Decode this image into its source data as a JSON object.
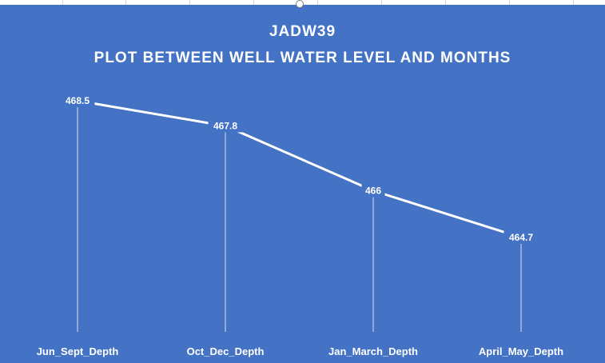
{
  "chart_data": {
    "type": "line",
    "title": "JADW39",
    "subtitle": "PLOT BETWEEN WELL WATER LEVEL AND MONTHS",
    "categories": [
      "Jun_Sept_Depth",
      "Oct_Dec_Depth",
      "Jan_March_Depth",
      "April_May_Depth"
    ],
    "series": [
      {
        "values": [
          468.5,
          467.8,
          466,
          464.7
        ]
      }
    ],
    "data_labels": [
      "468.5",
      "467.8",
      "466",
      "464.7"
    ],
    "drop_lines": true,
    "grid": false,
    "legend": "none",
    "colors": {
      "background": "#4472c4",
      "line": "#ffffff",
      "text": "#ffffff",
      "drop_line": "#d9e2f3"
    }
  }
}
